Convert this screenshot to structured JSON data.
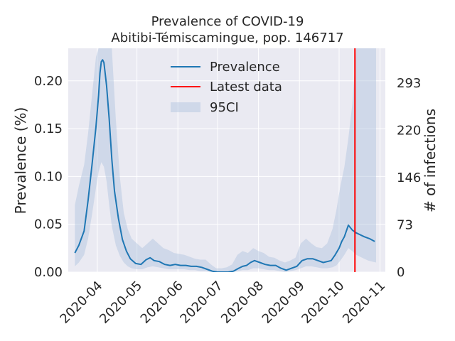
{
  "chart_data": {
    "type": "line",
    "title": "Prevalence of COVID-19",
    "subtitle": "Abitibi-Témiscamingue, pop. 146717",
    "ylabel": "Prevalence (%)",
    "ylabel_right": "# of infections",
    "xlabel": "",
    "ylim": [
      0,
      0.234
    ],
    "y_ticks": [
      "0.00",
      "0.05",
      "0.10",
      "0.15",
      "0.20"
    ],
    "y_ticks_right": [
      "0",
      "73",
      "146",
      "220",
      "293"
    ],
    "x_tick_labels": [
      "2020-04",
      "2020-05",
      "2020-06",
      "2020-07",
      "2020-08",
      "2020-09",
      "2020-10",
      "2020-11"
    ],
    "xlim": [
      "2020-03-10",
      "2020-11-05"
    ],
    "grid": true,
    "legend_position": "top-center",
    "legend": [
      "Prevalence",
      "Latest data",
      "95CI"
    ],
    "colors": {
      "prevalence": "#1f77b4",
      "latest": "#ff0000",
      "ci": "#b0c4de"
    },
    "latest_data_date": "2020-10-13",
    "series": [
      {
        "name": "Prevalence",
        "x": [
          "2020-03-15",
          "2020-03-18",
          "2020-03-22",
          "2020-03-25",
          "2020-03-28",
          "2020-03-31",
          "2020-04-02",
          "2020-04-03",
          "2020-04-04",
          "2020-04-05",
          "2020-04-06",
          "2020-04-08",
          "2020-04-10",
          "2020-04-12",
          "2020-04-14",
          "2020-04-17",
          "2020-04-20",
          "2020-04-23",
          "2020-04-26",
          "2020-04-30",
          "2020-05-04",
          "2020-05-08",
          "2020-05-11",
          "2020-05-14",
          "2020-05-18",
          "2020-05-22",
          "2020-05-26",
          "2020-05-30",
          "2020-06-03",
          "2020-06-07",
          "2020-06-11",
          "2020-06-15",
          "2020-06-19",
          "2020-06-23",
          "2020-06-27",
          "2020-07-01",
          "2020-07-05",
          "2020-07-09",
          "2020-07-13",
          "2020-07-17",
          "2020-07-20",
          "2020-07-23",
          "2020-07-26",
          "2020-07-29",
          "2020-08-02",
          "2020-08-06",
          "2020-08-10",
          "2020-08-14",
          "2020-08-18",
          "2020-08-22",
          "2020-08-26",
          "2020-08-30",
          "2020-09-03",
          "2020-09-07",
          "2020-09-11",
          "2020-09-15",
          "2020-09-19",
          "2020-09-22",
          "2020-09-25",
          "2020-09-28",
          "2020-10-01",
          "2020-10-03",
          "2020-10-05",
          "2020-10-08",
          "2020-10-11",
          "2020-10-14",
          "2020-10-17",
          "2020-10-20",
          "2020-10-24",
          "2020-10-28"
        ],
        "values": [
          0.02,
          0.028,
          0.043,
          0.075,
          0.112,
          0.152,
          0.185,
          0.208,
          0.22,
          0.222,
          0.219,
          0.195,
          0.16,
          0.118,
          0.085,
          0.056,
          0.034,
          0.022,
          0.014,
          0.009,
          0.008,
          0.013,
          0.015,
          0.012,
          0.011,
          0.008,
          0.007,
          0.008,
          0.007,
          0.007,
          0.006,
          0.006,
          0.005,
          0.003,
          0.001,
          0.0,
          0.0,
          0.0,
          0.001,
          0.004,
          0.006,
          0.007,
          0.01,
          0.012,
          0.01,
          0.008,
          0.007,
          0.007,
          0.004,
          0.002,
          0.004,
          0.006,
          0.012,
          0.014,
          0.014,
          0.012,
          0.01,
          0.011,
          0.012,
          0.018,
          0.025,
          0.032,
          0.037,
          0.049,
          0.044,
          0.041,
          0.039,
          0.037,
          0.035,
          0.032
        ]
      },
      {
        "name": "95CI",
        "x": [
          "2020-03-15",
          "2020-03-18",
          "2020-03-22",
          "2020-03-25",
          "2020-03-28",
          "2020-03-31",
          "2020-04-02",
          "2020-04-04",
          "2020-04-06",
          "2020-04-08",
          "2020-04-10",
          "2020-04-12",
          "2020-04-15",
          "2020-04-18",
          "2020-04-21",
          "2020-04-24",
          "2020-04-27",
          "2020-05-01",
          "2020-05-05",
          "2020-05-09",
          "2020-05-13",
          "2020-05-17",
          "2020-05-21",
          "2020-05-25",
          "2020-05-29",
          "2020-06-02",
          "2020-06-06",
          "2020-06-10",
          "2020-06-14",
          "2020-06-18",
          "2020-06-22",
          "2020-06-26",
          "2020-06-30",
          "2020-07-04",
          "2020-07-08",
          "2020-07-12",
          "2020-07-16",
          "2020-07-20",
          "2020-07-24",
          "2020-07-28",
          "2020-08-01",
          "2020-08-05",
          "2020-08-09",
          "2020-08-13",
          "2020-08-17",
          "2020-08-21",
          "2020-08-25",
          "2020-08-29",
          "2020-09-02",
          "2020-09-06",
          "2020-09-10",
          "2020-09-14",
          "2020-09-18",
          "2020-09-22",
          "2020-09-26",
          "2020-09-29",
          "2020-10-02",
          "2020-10-05",
          "2020-10-08",
          "2020-10-11",
          "2020-10-14",
          "2020-10-17",
          "2020-10-20",
          "2020-10-23",
          "2020-10-26",
          "2020-10-29"
        ],
        "lower": [
          0.006,
          0.01,
          0.018,
          0.035,
          0.06,
          0.088,
          0.105,
          0.115,
          0.11,
          0.095,
          0.07,
          0.048,
          0.028,
          0.017,
          0.01,
          0.006,
          0.004,
          0.003,
          0.003,
          0.005,
          0.006,
          0.005,
          0.004,
          0.003,
          0.003,
          0.003,
          0.003,
          0.002,
          0.002,
          0.001,
          0.001,
          0.0,
          0.0,
          0.0,
          0.0,
          0.0,
          0.001,
          0.002,
          0.002,
          0.004,
          0.004,
          0.003,
          0.002,
          0.002,
          0.001,
          0.0,
          0.001,
          0.002,
          0.004,
          0.006,
          0.006,
          0.005,
          0.004,
          0.004,
          0.005,
          0.007,
          0.012,
          0.018,
          0.025,
          0.022,
          0.018,
          0.016,
          0.014,
          0.012,
          0.011,
          0.01
        ],
        "upper": [
          0.07,
          0.09,
          0.112,
          0.145,
          0.185,
          0.225,
          0.234,
          0.234,
          0.234,
          0.234,
          0.234,
          0.234,
          0.16,
          0.1,
          0.062,
          0.045,
          0.035,
          0.03,
          0.025,
          0.03,
          0.035,
          0.03,
          0.025,
          0.023,
          0.02,
          0.019,
          0.018,
          0.016,
          0.014,
          0.013,
          0.013,
          0.008,
          0.004,
          0.004,
          0.005,
          0.008,
          0.018,
          0.022,
          0.02,
          0.025,
          0.022,
          0.02,
          0.016,
          0.015,
          0.012,
          0.01,
          0.012,
          0.015,
          0.03,
          0.035,
          0.03,
          0.026,
          0.025,
          0.03,
          0.045,
          0.065,
          0.09,
          0.11,
          0.14,
          0.175,
          0.234,
          0.234,
          0.234,
          0.234,
          0.234,
          0.234
        ]
      }
    ]
  }
}
